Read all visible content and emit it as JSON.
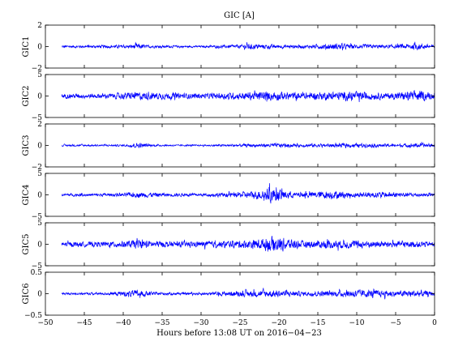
{
  "chart_data": {
    "type": "line",
    "title": "GIC [A]",
    "xlabel": "Hours before  13:08 UT on 2016−04−23",
    "xlim": [
      -50,
      0
    ],
    "x_ticks": [
      "−50",
      "−45",
      "−40",
      "−35",
      "−30",
      "−25",
      "−20",
      "−15",
      "−10",
      "−5",
      "0"
    ],
    "x_tick_values": [
      -50,
      -45,
      -40,
      -35,
      -30,
      -25,
      -20,
      -15,
      -10,
      -5,
      0
    ],
    "line_color": "#0000ff",
    "grid": false,
    "panels": [
      {
        "ylabel": "GIC1",
        "ylim": [
          -2,
          2
        ],
        "y_ticks": [
          "2",
          "0",
          "−2"
        ],
        "y_tick_values": [
          2,
          0,
          -2
        ],
        "approx_envelope": [
          {
            "x": -48,
            "amp": 0.25
          },
          {
            "x": -39,
            "amp": 0.35
          },
          {
            "x": -38,
            "amp": 0.7
          },
          {
            "x": -37,
            "amp": 0.3
          },
          {
            "x": -30,
            "amp": 0.2
          },
          {
            "x": -25,
            "amp": 0.4
          },
          {
            "x": -24,
            "amp": 0.6
          },
          {
            "x": -20,
            "amp": 0.4
          },
          {
            "x": -16,
            "amp": 0.35
          },
          {
            "x": -13,
            "amp": 0.7
          },
          {
            "x": -10,
            "amp": 0.45
          },
          {
            "x": -5,
            "amp": 0.4
          },
          {
            "x": -2,
            "amp": 0.7
          },
          {
            "x": 0,
            "amp": 0.35
          }
        ]
      },
      {
        "ylabel": "GIC2",
        "ylim": [
          -5,
          5
        ],
        "y_ticks": [
          "5",
          "0",
          "−5"
        ],
        "y_tick_values": [
          5,
          0,
          -5
        ],
        "approx_envelope": [
          {
            "x": -48,
            "amp": 1.2
          },
          {
            "x": -42,
            "amp": 1.3
          },
          {
            "x": -38,
            "amp": 2.2
          },
          {
            "x": -34,
            "amp": 1.6
          },
          {
            "x": -30,
            "amp": 1.3
          },
          {
            "x": -25,
            "amp": 2.0
          },
          {
            "x": -21,
            "amp": 2.5
          },
          {
            "x": -17,
            "amp": 1.8
          },
          {
            "x": -13,
            "amp": 2.2
          },
          {
            "x": -10,
            "amp": 2.4
          },
          {
            "x": -6,
            "amp": 1.6
          },
          {
            "x": -2,
            "amp": 3.0
          },
          {
            "x": 0,
            "amp": 1.4
          }
        ]
      },
      {
        "ylabel": "GIC3",
        "ylim": [
          -2,
          2
        ],
        "y_ticks": [
          "2",
          "0",
          "−2"
        ],
        "y_tick_values": [
          2,
          0,
          -2
        ],
        "approx_envelope": [
          {
            "x": -48,
            "amp": 0.2
          },
          {
            "x": -40,
            "amp": 0.2
          },
          {
            "x": -38,
            "amp": 0.55
          },
          {
            "x": -36,
            "amp": 0.2
          },
          {
            "x": -30,
            "amp": 0.15
          },
          {
            "x": -25,
            "amp": 0.3
          },
          {
            "x": -21,
            "amp": 0.45
          },
          {
            "x": -17,
            "amp": 0.35
          },
          {
            "x": -14,
            "amp": 0.4
          },
          {
            "x": -10,
            "amp": 0.45
          },
          {
            "x": -5,
            "amp": 0.3
          },
          {
            "x": -2,
            "amp": 0.5
          },
          {
            "x": 0,
            "amp": 0.3
          }
        ]
      },
      {
        "ylabel": "GIC4",
        "ylim": [
          -5,
          5
        ],
        "y_ticks": [
          "5",
          "0",
          "−5"
        ],
        "y_tick_values": [
          5,
          0,
          -5
        ],
        "approx_envelope": [
          {
            "x": -48,
            "amp": 0.7
          },
          {
            "x": -40,
            "amp": 0.9
          },
          {
            "x": -38,
            "amp": 1.5
          },
          {
            "x": -34,
            "amp": 0.9
          },
          {
            "x": -30,
            "amp": 0.8
          },
          {
            "x": -25,
            "amp": 1.4
          },
          {
            "x": -22,
            "amp": 2.6
          },
          {
            "x": -21,
            "amp": 4.2
          },
          {
            "x": -18,
            "amp": 1.3
          },
          {
            "x": -13,
            "amp": 2.2
          },
          {
            "x": -10,
            "amp": 1.3
          },
          {
            "x": -6,
            "amp": 1.6
          },
          {
            "x": -3,
            "amp": 1.1
          },
          {
            "x": 0,
            "amp": 0.8
          }
        ]
      },
      {
        "ylabel": "GIC5",
        "ylim": [
          -5,
          5
        ],
        "y_ticks": [
          "5",
          "0",
          "−5"
        ],
        "y_tick_values": [
          5,
          0,
          -5
        ],
        "approx_envelope": [
          {
            "x": -48,
            "amp": 1.3
          },
          {
            "x": -42,
            "amp": 1.4
          },
          {
            "x": -38,
            "amp": 2.3
          },
          {
            "x": -34,
            "amp": 1.4
          },
          {
            "x": -30,
            "amp": 1.5
          },
          {
            "x": -25,
            "amp": 2.0
          },
          {
            "x": -22,
            "amp": 3.0
          },
          {
            "x": -21,
            "amp": 4.5
          },
          {
            "x": -17,
            "amp": 1.8
          },
          {
            "x": -13,
            "amp": 2.4
          },
          {
            "x": -10,
            "amp": 2.0
          },
          {
            "x": -6,
            "amp": 1.6
          },
          {
            "x": -2,
            "amp": 1.8
          },
          {
            "x": 0,
            "amp": 1.2
          }
        ]
      },
      {
        "ylabel": "GIC6",
        "ylim": [
          -0.5,
          0.5
        ],
        "y_ticks": [
          "0.5",
          "0",
          "−0.5"
        ],
        "y_tick_values": [
          0.5,
          0,
          -0.5
        ],
        "approx_envelope": [
          {
            "x": -48,
            "amp": 0.05
          },
          {
            "x": -42,
            "amp": 0.07
          },
          {
            "x": -38,
            "amp": 0.2
          },
          {
            "x": -36,
            "amp": 0.08
          },
          {
            "x": -31,
            "amp": 0.06
          },
          {
            "x": -25,
            "amp": 0.15
          },
          {
            "x": -21,
            "amp": 0.2
          },
          {
            "x": -17,
            "amp": 0.12
          },
          {
            "x": -13,
            "amp": 0.15
          },
          {
            "x": -10,
            "amp": 0.22
          },
          {
            "x": -5,
            "amp": 0.15
          },
          {
            "x": -2,
            "amp": 0.2
          },
          {
            "x": 0,
            "amp": 0.1
          }
        ]
      }
    ]
  }
}
